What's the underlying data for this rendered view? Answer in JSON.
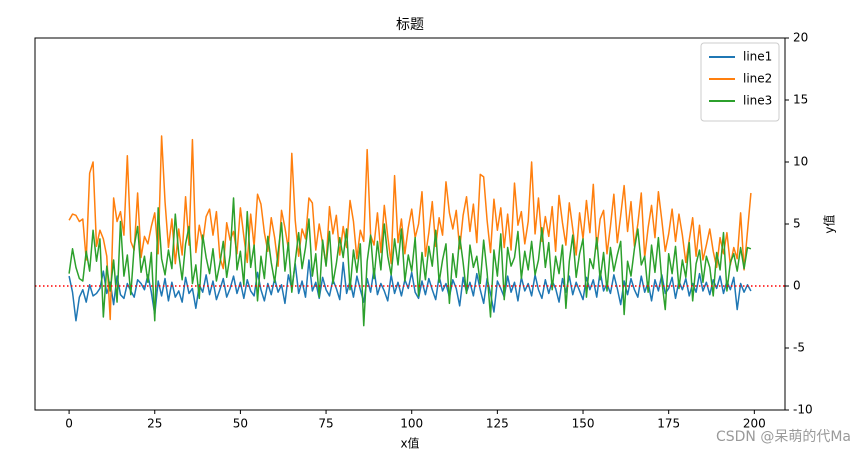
{
  "chart_data": {
    "type": "line",
    "title": "标题",
    "x_label": "x值",
    "y_label": "y值",
    "y_axis_side": "right",
    "legend": "upper right",
    "watermark": "CSDN @呆萌的代Ma",
    "xlim": [
      -9.95,
      208.95
    ],
    "xticks": [
      0,
      25,
      50,
      75,
      100,
      125,
      150,
      175,
      200
    ],
    "ylim": [
      -10,
      20
    ],
    "yticks": [
      -10,
      -5,
      0,
      5,
      10,
      15,
      20
    ],
    "hlines": [
      {
        "y": 0,
        "color": "#ff0000",
        "style": "dotted"
      }
    ],
    "x": [
      0,
      1,
      2,
      3,
      4,
      5,
      6,
      7,
      8,
      9,
      10,
      11,
      12,
      13,
      14,
      15,
      16,
      17,
      18,
      19,
      20,
      21,
      22,
      23,
      24,
      25,
      26,
      27,
      28,
      29,
      30,
      31,
      32,
      33,
      34,
      35,
      36,
      37,
      38,
      39,
      40,
      41,
      42,
      43,
      44,
      45,
      46,
      47,
      48,
      49,
      50,
      51,
      52,
      53,
      54,
      55,
      56,
      57,
      58,
      59,
      60,
      61,
      62,
      63,
      64,
      65,
      66,
      67,
      68,
      69,
      70,
      71,
      72,
      73,
      74,
      75,
      76,
      77,
      78,
      79,
      80,
      81,
      82,
      83,
      84,
      85,
      86,
      87,
      88,
      89,
      90,
      91,
      92,
      93,
      94,
      95,
      96,
      97,
      98,
      99,
      100,
      101,
      102,
      103,
      104,
      105,
      106,
      107,
      108,
      109,
      110,
      111,
      112,
      113,
      114,
      115,
      116,
      117,
      118,
      119,
      120,
      121,
      122,
      123,
      124,
      125,
      126,
      127,
      128,
      129,
      130,
      131,
      132,
      133,
      134,
      135,
      136,
      137,
      138,
      139,
      140,
      141,
      142,
      143,
      144,
      145,
      146,
      147,
      148,
      149,
      150,
      151,
      152,
      153,
      154,
      155,
      156,
      157,
      158,
      159,
      160,
      161,
      162,
      163,
      164,
      165,
      166,
      167,
      168,
      169,
      170,
      171,
      172,
      173,
      174,
      175,
      176,
      177,
      178,
      179,
      180,
      181,
      182,
      183,
      184,
      185,
      186,
      187,
      188,
      189,
      190,
      191,
      192,
      193,
      194,
      195,
      196,
      197,
      198,
      199
    ],
    "series": [
      {
        "name": "line1",
        "color": "#1f77b4",
        "values": [
          0.8,
          -0.5,
          -2.8,
          -0.9,
          -0.3,
          -1.3,
          0.1,
          -0.8,
          -0.6,
          -0.2,
          1.2,
          -0.6,
          0.3,
          -1.5,
          0.8,
          -0.7,
          -1.0,
          0.2,
          -0.4,
          -0.9,
          0.5,
          0.2,
          -0.3,
          0.9,
          -0.5,
          -2.3,
          0.4,
          -0.8,
          0.6,
          -1.2,
          0.3,
          -0.9,
          -0.4,
          -1.3,
          0.7,
          -0.6,
          -0.2,
          -1.8,
          0.1,
          -0.5,
          0.9,
          -0.7,
          0.4,
          -1.1,
          -0.3,
          0.6,
          -0.9,
          -0.2,
          0.8,
          -0.6,
          0.3,
          -1.0,
          0.5,
          -0.4,
          -0.8,
          1.1,
          -0.3,
          -1.2,
          0.2,
          -0.7,
          0.6,
          -0.5,
          0.1,
          -1.4,
          0.9,
          -0.2,
          1.8,
          -0.6,
          0.4,
          -0.9,
          2.1,
          -0.4,
          0.3,
          -1.0,
          0.7,
          -0.3,
          -0.8,
          0.5,
          -0.2,
          -1.1,
          1.9,
          -0.6,
          0.4,
          -0.9,
          0.8,
          -0.3,
          -1.3,
          0.6,
          -0.5,
          1.4,
          -0.7,
          0.2,
          -0.4,
          -1.2,
          0.9,
          -0.6,
          0.3,
          -0.8,
          0.5,
          -0.2,
          1.1,
          -0.5,
          -1.0,
          0.4,
          -0.7,
          0.6,
          -0.3,
          -1.1,
          0.8,
          -0.4,
          0.2,
          -0.9,
          0.5,
          -0.2,
          -1.6,
          0.7,
          -0.5,
          0.3,
          -0.8,
          1.0,
          -0.3,
          -1.4,
          0.6,
          -0.6,
          -2.1,
          0.4,
          -0.2,
          -0.9,
          0.8,
          -0.5,
          0.3,
          -1.2,
          0.7,
          -0.4,
          0.2,
          -0.8,
          0.9,
          -0.3,
          -1.0,
          0.5,
          -0.6,
          0.4,
          -0.2,
          -1.3,
          0.6,
          -0.5,
          0.8,
          -0.7,
          0.3,
          -0.4,
          -1.1,
          0.7,
          -0.3,
          0.5,
          -0.9,
          1.2,
          -0.4,
          0.2,
          -0.6,
          0.9,
          -0.2,
          -1.5,
          0.4,
          -0.7,
          0.6,
          -0.3,
          -0.9,
          0.8,
          -0.5,
          0.3,
          -1.2,
          0.5,
          -0.4,
          0.9,
          -0.6,
          -0.2,
          0.7,
          -1.0,
          0.4,
          -0.3,
          0.6,
          -0.8,
          0.2,
          -0.5,
          1.0,
          -0.4,
          0.3,
          -0.7,
          0.5,
          -0.2,
          0.8,
          -0.6,
          0.4,
          -0.3,
          0.7,
          -1.9,
          0.2,
          -0.5,
          0.1,
          -0.4
        ]
      },
      {
        "name": "line2",
        "color": "#ff7f0e",
        "values": [
          5.3,
          5.8,
          5.7,
          5.2,
          5.4,
          2.1,
          9.1,
          10.0,
          3.2,
          4.5,
          3.8,
          2.4,
          -2.7,
          7.1,
          5.2,
          6.0,
          4.1,
          10.5,
          3.6,
          2.9,
          7.5,
          2.3,
          4.0,
          3.4,
          4.8,
          5.9,
          2.6,
          12.1,
          6.8,
          3.1,
          5.4,
          1.8,
          4.6,
          2.5,
          7.2,
          3.3,
          11.8,
          2.7,
          4.9,
          3.5,
          5.6,
          6.2,
          4.1,
          6.0,
          2.3,
          1.4,
          5.1,
          3.7,
          4.4,
          2.6,
          6.3,
          4.0,
          1.9,
          5.8,
          3.2,
          7.4,
          6.6,
          4.3,
          2.8,
          5.5,
          3.9,
          1.6,
          6.1,
          4.7,
          3.0,
          10.7,
          5.3,
          2.4,
          4.6,
          3.8,
          7.1,
          6.7,
          2.9,
          5.0,
          3.4,
          1.7,
          6.4,
          4.2,
          5.7,
          2.5,
          4.8,
          3.1,
          6.9,
          5.2,
          2.2,
          4.5,
          3.6,
          11.0,
          4.1,
          3.3,
          5.9,
          2.7,
          6.5,
          4.0,
          1.8,
          8.9,
          3.5,
          5.4,
          2.6,
          4.7,
          6.2,
          3.9,
          5.0,
          7.6,
          2.4,
          4.3,
          6.8,
          3.2,
          5.5,
          4.1,
          8.4,
          5.9,
          4.6,
          6.1,
          3.0,
          5.7,
          7.2,
          4.4,
          6.6,
          3.5,
          9.0,
          8.8,
          5.3,
          2.7,
          7.0,
          4.5,
          6.3,
          3.1,
          5.8,
          2.9,
          8.3,
          4.9,
          6.0,
          3.4,
          5.2,
          10.0,
          4.2,
          7.1,
          3.6,
          5.6,
          4.0,
          6.4,
          2.8,
          7.3,
          5.1,
          3.3,
          6.7,
          4.6,
          2.5,
          5.9,
          3.8,
          6.9,
          4.3,
          8.2,
          3.0,
          5.4,
          6.1,
          2.6,
          4.8,
          7.4,
          3.5,
          5.7,
          8.1,
          4.4,
          6.8,
          3.2,
          5.0,
          7.5,
          2.3,
          4.7,
          6.5,
          3.9,
          7.6,
          5.3,
          2.8,
          4.2,
          6.2,
          3.6,
          5.8,
          4.1,
          1.9,
          3.7,
          5.5,
          2.4,
          4.9,
          2.1,
          3.3,
          4.6,
          2.8,
          1.5,
          3.9,
          2.6,
          4.3,
          1.7,
          3.1,
          2.2,
          5.9,
          1.3,
          4.4,
          7.5
        ]
      },
      {
        "name": "line3",
        "color": "#2ca02c",
        "values": [
          1.0,
          3.0,
          1.5,
          0.6,
          0.4,
          2.8,
          1.2,
          4.5,
          2.0,
          3.8,
          -2.5,
          1.6,
          -0.4,
          2.1,
          -1.3,
          5.2,
          0.8,
          2.5,
          -0.7,
          3.2,
          4.8,
          1.1,
          2.4,
          0.3,
          2.7,
          -2.8,
          6.3,
          2.2,
          0.9,
          2.9,
          1.4,
          5.8,
          2.6,
          0.5,
          3.4,
          4.8,
          0.2,
          1.7,
          -1.0,
          4.1,
          2.3,
          1.0,
          3.0,
          0.4,
          1.8,
          3.6,
          0.7,
          2.5,
          7.1,
          1.3,
          2.8,
          0.1,
          6.0,
          1.5,
          3.3,
          -1.2,
          2.4,
          0.6,
          4.0,
          1.9,
          0.3,
          2.7,
          5.1,
          1.2,
          3.5,
          -0.5,
          2.0,
          4.3,
          1.4,
          3.1,
          5.4,
          0.8,
          2.6,
          -0.9,
          3.7,
          1.6,
          4.4,
          0.2,
          1.8,
          3.9,
          2.3,
          4.6,
          -0.3,
          2.9,
          1.1,
          3.4,
          -3.2,
          2.0,
          4.1,
          0.6,
          3.6,
          1.3,
          5.0,
          2.4,
          0.9,
          3.8,
          1.7,
          4.6,
          0.4,
          2.5,
          1.2,
          3.9,
          -0.8,
          2.7,
          0.5,
          3.2,
          1.6,
          4.5,
          0.3,
          2.1,
          3.4,
          -1.4,
          2.6,
          0.7,
          4.0,
          1.9,
          -0.6,
          3.3,
          1.5,
          2.4,
          0.2,
          3.7,
          1.1,
          -2.5,
          2.9,
          0.8,
          4.2,
          -1.1,
          3.1,
          1.6,
          2.3,
          4.4,
          0.6,
          2.8,
          1.3,
          3.6,
          0.9,
          2.1,
          4.7,
          1.5,
          3.5,
          -0.3,
          2.4,
          1.0,
          3.3,
          -1.8,
          2.0,
          4.1,
          0.7,
          2.6,
          3.8,
          -0.9,
          2.2,
          1.4,
          3.9,
          0.5,
          2.7,
          -0.4,
          3.1,
          1.2,
          2.5,
          3.6,
          -2.3,
          2.0,
          0.8,
          3.0,
          4.6,
          1.7,
          2.4,
          -0.5,
          3.3,
          1.1,
          3.9,
          0.4,
          -1.9,
          2.6,
          1.0,
          3.2,
          -0.2,
          2.1,
          0.7,
          3.5,
          -1.2,
          1.8,
          2.9,
          0.3,
          2.4,
          1.5,
          -0.8,
          2.7,
          1.3,
          4.3,
          -0.4,
          1.9,
          2.6,
          1.2,
          3.1,
          1.4,
          3.1,
          3.0
        ]
      }
    ]
  }
}
